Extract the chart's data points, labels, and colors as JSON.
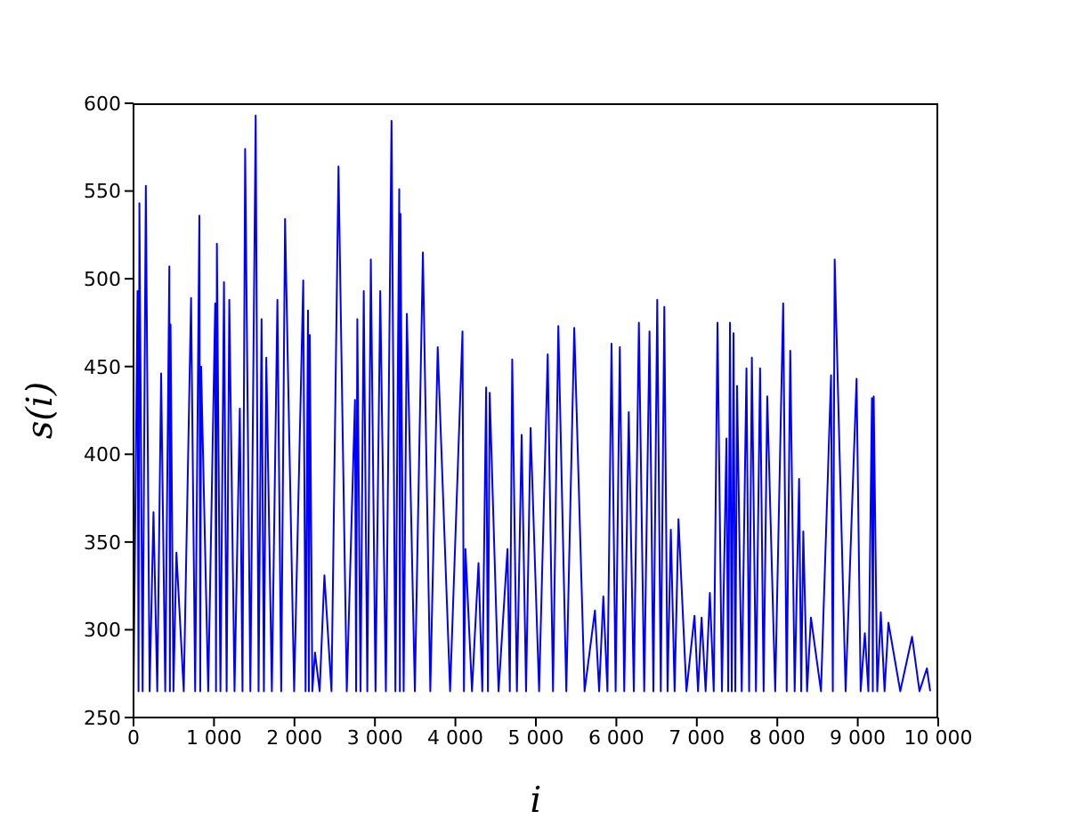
{
  "chart_data": {
    "type": "line",
    "xlabel": "i",
    "ylabel": "s(i)",
    "xlim": [
      0,
      10000
    ],
    "ylim": [
      250,
      600
    ],
    "xticks": [
      0,
      {
        "value": 1000,
        "label": "1 000"
      },
      {
        "value": 2000,
        "label": "2 000"
      },
      {
        "value": 3000,
        "label": "3 000"
      },
      {
        "value": 4000,
        "label": "4 000"
      },
      {
        "value": 5000,
        "label": "5 000"
      },
      {
        "value": 6000,
        "label": "6 000"
      },
      {
        "value": 7000,
        "label": "7 000"
      },
      {
        "value": 8000,
        "label": "8 000"
      },
      {
        "value": 9000,
        "label": "9 000"
      },
      {
        "value": 10000,
        "label": "10 000"
      }
    ],
    "yticks": [
      250,
      300,
      350,
      400,
      450,
      500,
      550,
      600
    ],
    "marker": "none",
    "line_style": "solid",
    "series": [
      {
        "color": "#0000ff",
        "x": [
          0,
          50,
          62,
          73,
          113,
          153,
          200,
          248,
          295,
          343,
          394,
          445,
          452,
          460,
          496,
          533,
          624,
          715,
          766,
          818,
          829,
          840,
          928,
          1015,
          1025,
          1036,
          1080,
          1124,
          1157,
          1190,
          1255,
          1321,
          1354,
          1387,
          1452,
          1518,
          1554,
          1591,
          1620,
          1650,
          1719,
          1788,
          1835,
          1883,
          1996,
          2109,
          2138,
          2168,
          2179,
          2190,
          2222,
          2255,
          2313,
          2372,
          2460,
          2547,
          2650,
          2752,
          2766,
          2781,
          2821,
          2861,
          2905,
          2949,
          3007,
          3066,
          3136,
          3206,
          3254,
          3302,
          3310,
          3317,
          3357,
          3397,
          3496,
          3596,
          3688,
          3780,
          3934,
          4088,
          4106,
          4125,
          4206,
          4287,
          4334,
          4382,
          4404,
          4426,
          4536,
          4647,
          4676,
          4706,
          4764,
          4823,
          4878,
          4934,
          5040,
          5147,
          5213,
          5279,
          5378,
          5477,
          5605,
          5734,
          5786,
          5838,
          5889,
          5940,
          5991,
          6043,
          6098,
          6154,
          6217,
          6280,
          6346,
          6412,
          6460,
          6508,
          6552,
          6596,
          6636,
          6677,
          6724,
          6772,
          6871,
          6971,
          7015,
          7059,
          7110,
          7162,
          7210,
          7257,
          7312,
          7368,
          7390,
          7412,
          7434,
          7456,
          7478,
          7500,
          7558,
          7617,
          7650,
          7684,
          7735,
          7786,
          7830,
          7875,
          7974,
          8073,
          8117,
          8161,
          8216,
          8271,
          8297,
          8323,
          8370,
          8418,
          8543,
          8668,
          8690,
          8713,
          8849,
          8985,
          9036,
          9088,
          9132,
          9176,
          9187,
          9198,
          9242,
          9286,
          9333,
          9381,
          9528,
          9675,
          9767,
          9859,
          9900
        ],
        "values": [
          265,
          493,
          265,
          543,
          265,
          553,
          265,
          367,
          265,
          446,
          265,
          507,
          265,
          474,
          265,
          344,
          265,
          489,
          265,
          536,
          265,
          450,
          265,
          486,
          265,
          520,
          265,
          498,
          265,
          488,
          265,
          426,
          265,
          574,
          265,
          593,
          265,
          477,
          265,
          455,
          265,
          488,
          265,
          534,
          265,
          499,
          265,
          482,
          265,
          468,
          265,
          287,
          265,
          331,
          265,
          564,
          265,
          431,
          265,
          477,
          265,
          493,
          265,
          511,
          265,
          493,
          265,
          590,
          265,
          551,
          265,
          537,
          265,
          480,
          265,
          515,
          265,
          461,
          265,
          470,
          265,
          346,
          265,
          338,
          265,
          438,
          265,
          435,
          265,
          346,
          265,
          454,
          265,
          411,
          265,
          415,
          265,
          457,
          265,
          473,
          265,
          472,
          265,
          311,
          265,
          319,
          265,
          463,
          265,
          461,
          265,
          424,
          265,
          475,
          265,
          470,
          265,
          488,
          265,
          484,
          265,
          357,
          265,
          363,
          265,
          308,
          265,
          307,
          265,
          321,
          265,
          475,
          265,
          409,
          265,
          475,
          265,
          469,
          265,
          439,
          265,
          449,
          265,
          455,
          265,
          449,
          265,
          433,
          265,
          486,
          265,
          459,
          265,
          386,
          265,
          356,
          265,
          307,
          265,
          445,
          265,
          511,
          265,
          443,
          265,
          298,
          265,
          432,
          265,
          433,
          265,
          310,
          265,
          304,
          265,
          296,
          265,
          278,
          265
        ]
      }
    ]
  }
}
